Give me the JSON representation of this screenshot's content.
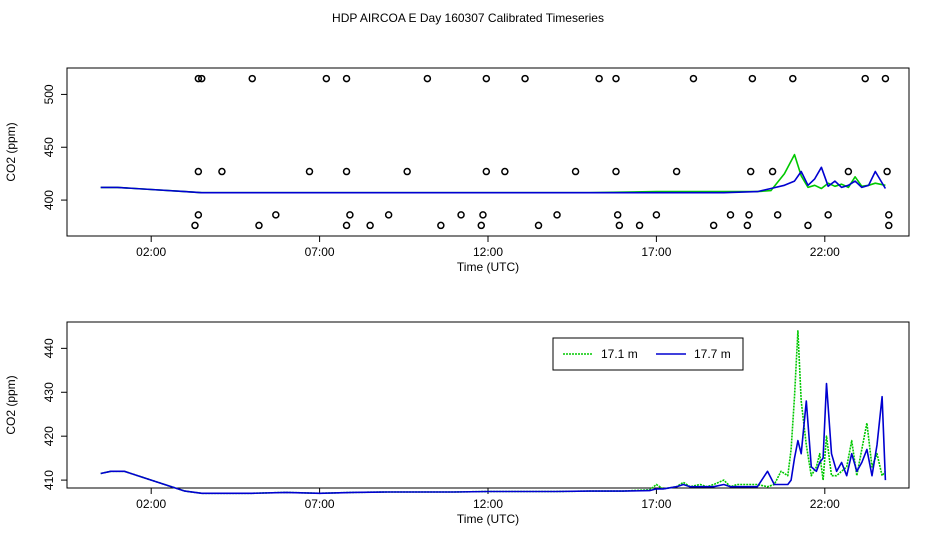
{
  "title": "HDP AIRCOA E  Day 160307  Calibrated Timeseries",
  "colors": {
    "green": "#00c800",
    "blue": "#0000d0",
    "axis": "#000000"
  },
  "chart_data": [
    {
      "type": "scatter",
      "title": "",
      "xlabel": "Time (UTC)",
      "ylabel": "CO2 (ppm)",
      "xlim": [
        -0.5,
        24.5
      ],
      "ylim": [
        366,
        525
      ],
      "x_ticks": [
        {
          "value": 2,
          "label": "02:00"
        },
        {
          "value": 7,
          "label": "07:00"
        },
        {
          "value": 12,
          "label": "12:00"
        },
        {
          "value": 17,
          "label": "17:00"
        },
        {
          "value": 22,
          "label": "22:00"
        }
      ],
      "y_ticks": [
        {
          "value": 400,
          "label": "400"
        },
        {
          "value": 450,
          "label": "450"
        },
        {
          "value": 500,
          "label": "500"
        }
      ],
      "series": [
        {
          "style": "line",
          "color": "#00c800",
          "x": [
            0.5,
            1,
            2,
            3,
            3.5,
            5,
            7,
            9,
            11,
            13,
            15,
            17,
            18,
            19,
            20,
            20.4,
            20.8,
            21.1,
            21.3,
            21.5,
            21.7,
            21.9,
            22.1,
            22.3,
            22.5,
            22.7,
            22.9,
            23.1,
            23.3,
            23.5,
            23.8
          ],
          "y": [
            412,
            412,
            410,
            408,
            407,
            407,
            407,
            407,
            407,
            407,
            407,
            408,
            408,
            408,
            408,
            409,
            425,
            443,
            423,
            412,
            414,
            411,
            416,
            413,
            415,
            412,
            422,
            413,
            414,
            416,
            414
          ]
        },
        {
          "style": "line",
          "color": "#0000d0",
          "x": [
            0.5,
            1,
            2,
            3,
            3.5,
            5,
            7,
            9,
            11,
            13,
            15,
            17,
            18,
            19,
            20,
            20.4,
            20.8,
            21.1,
            21.3,
            21.5,
            21.7,
            21.9,
            22.1,
            22.3,
            22.5,
            22.7,
            22.9,
            23.1,
            23.3,
            23.5,
            23.8
          ],
          "y": [
            412,
            412,
            410,
            408,
            407,
            407,
            407,
            407,
            407,
            407,
            407,
            407,
            407,
            407,
            408,
            411,
            414,
            418,
            427,
            414,
            420,
            431,
            413,
            418,
            412,
            414,
            418,
            412,
            414,
            427,
            411
          ]
        },
        {
          "style": "points",
          "x": [
            3.4,
            3.5,
            5.0,
            7.2,
            7.8,
            10.2,
            11.95,
            13.1,
            15.3,
            15.8,
            18.1,
            19.85,
            21.05,
            23.2,
            23.8,
            3.4,
            4.1,
            6.7,
            7.8,
            9.6,
            11.95,
            12.5,
            14.6,
            15.8,
            17.6,
            19.8,
            20.45,
            22.7,
            23.85,
            3.4,
            3.3,
            5.2,
            5.7,
            7.9,
            7.8,
            8.5,
            9.05,
            10.6,
            11.2,
            11.85,
            11.8,
            13.5,
            14.05,
            15.85,
            15.9,
            16.5,
            17.0,
            18.7,
            19.2,
            19.7,
            19.75,
            20.6,
            21.5,
            22.1,
            23.9,
            23.9
          ],
          "y": [
            515,
            515,
            515,
            515,
            515,
            515,
            515,
            515,
            515,
            515,
            515,
            515,
            515,
            515,
            515,
            427,
            427,
            427,
            427,
            427,
            427,
            427,
            427,
            427,
            427,
            427,
            427,
            427,
            427,
            386,
            376,
            376,
            386,
            386,
            376,
            376,
            386,
            376,
            386,
            386,
            376,
            376,
            386,
            386,
            376,
            376,
            386,
            376,
            386,
            376,
            386,
            386,
            376,
            386,
            386,
            376
          ]
        }
      ]
    },
    {
      "type": "line",
      "title": "",
      "xlabel": "Time (UTC)",
      "ylabel": "CO2 (ppm)",
      "xlim": [
        -0.5,
        24.5
      ],
      "ylim": [
        408.2,
        446.0
      ],
      "x_ticks": [
        {
          "value": 2,
          "label": "02:00"
        },
        {
          "value": 7,
          "label": "07:00"
        },
        {
          "value": 12,
          "label": "12:00"
        },
        {
          "value": 17,
          "label": "17:00"
        },
        {
          "value": 22,
          "label": "22:00"
        }
      ],
      "y_ticks": [
        {
          "value": 410,
          "label": "410"
        },
        {
          "value": 420,
          "label": "420"
        },
        {
          "value": 430,
          "label": "430"
        },
        {
          "value": 440,
          "label": "440"
        }
      ],
      "legend": {
        "position": "top-right"
      },
      "series": [
        {
          "name": "17.1 m",
          "color": "#00c800",
          "style": "dotted",
          "x": [
            0.5,
            0.8,
            1.2,
            2,
            3,
            3.5,
            4,
            5,
            6,
            7,
            8,
            9,
            10,
            11,
            12,
            13,
            14,
            15,
            16,
            16.8,
            17,
            17.2,
            17.6,
            17.8,
            18,
            18.3,
            18.5,
            18.7,
            19,
            19.2,
            19.4,
            20,
            20.3,
            20.5,
            20.7,
            20.9,
            21.0,
            21.1,
            21.2,
            21.3,
            21.45,
            21.6,
            21.75,
            21.85,
            21.95,
            22.05,
            22.2,
            22.35,
            22.5,
            22.65,
            22.8,
            22.95,
            23.1,
            23.25,
            23.4,
            23.55,
            23.7,
            23.8
          ],
          "y": [
            411.5,
            412,
            412,
            410,
            407.5,
            407,
            407,
            407,
            407.2,
            407,
            407.2,
            407.3,
            407.3,
            407.3,
            407.4,
            407.4,
            407.4,
            407.5,
            407.5,
            407.8,
            409,
            408,
            408.5,
            409.5,
            408.5,
            409,
            408.5,
            409,
            410,
            408.5,
            409,
            409,
            408.5,
            409,
            412,
            411,
            417,
            429,
            444,
            428,
            418,
            411,
            413,
            416,
            410,
            420,
            411,
            411,
            412,
            413,
            419,
            411,
            417,
            423,
            413,
            416,
            411,
            412
          ]
        },
        {
          "name": "17.7 m",
          "color": "#0000d0",
          "style": "solid",
          "x": [
            0.5,
            0.8,
            1.2,
            2,
            3,
            3.5,
            4,
            5,
            6,
            7,
            8,
            9,
            10,
            11,
            12,
            13,
            14,
            15,
            16,
            16.8,
            17,
            17.2,
            17.6,
            17.8,
            18,
            18.3,
            18.5,
            18.7,
            19,
            19.2,
            19.4,
            20,
            20.3,
            20.5,
            20.7,
            20.9,
            21.0,
            21.1,
            21.2,
            21.3,
            21.45,
            21.6,
            21.75,
            21.85,
            21.95,
            22.05,
            22.2,
            22.35,
            22.5,
            22.65,
            22.8,
            22.95,
            23.1,
            23.25,
            23.4,
            23.55,
            23.7,
            23.8
          ],
          "y": [
            411.5,
            412,
            412,
            410,
            407.5,
            407,
            407,
            407,
            407.2,
            407,
            407.2,
            407.3,
            407.3,
            407.3,
            407.4,
            407.4,
            407.4,
            407.5,
            407.5,
            407.6,
            408,
            408,
            408.5,
            409,
            408.5,
            408.5,
            408.5,
            408.5,
            409,
            408.5,
            408.5,
            408.5,
            412,
            409,
            409,
            409,
            410,
            415,
            419,
            416,
            428,
            413,
            412,
            414,
            415,
            432,
            416,
            412,
            414,
            411,
            416,
            412,
            414,
            417,
            411,
            418,
            429,
            410
          ]
        }
      ]
    }
  ]
}
